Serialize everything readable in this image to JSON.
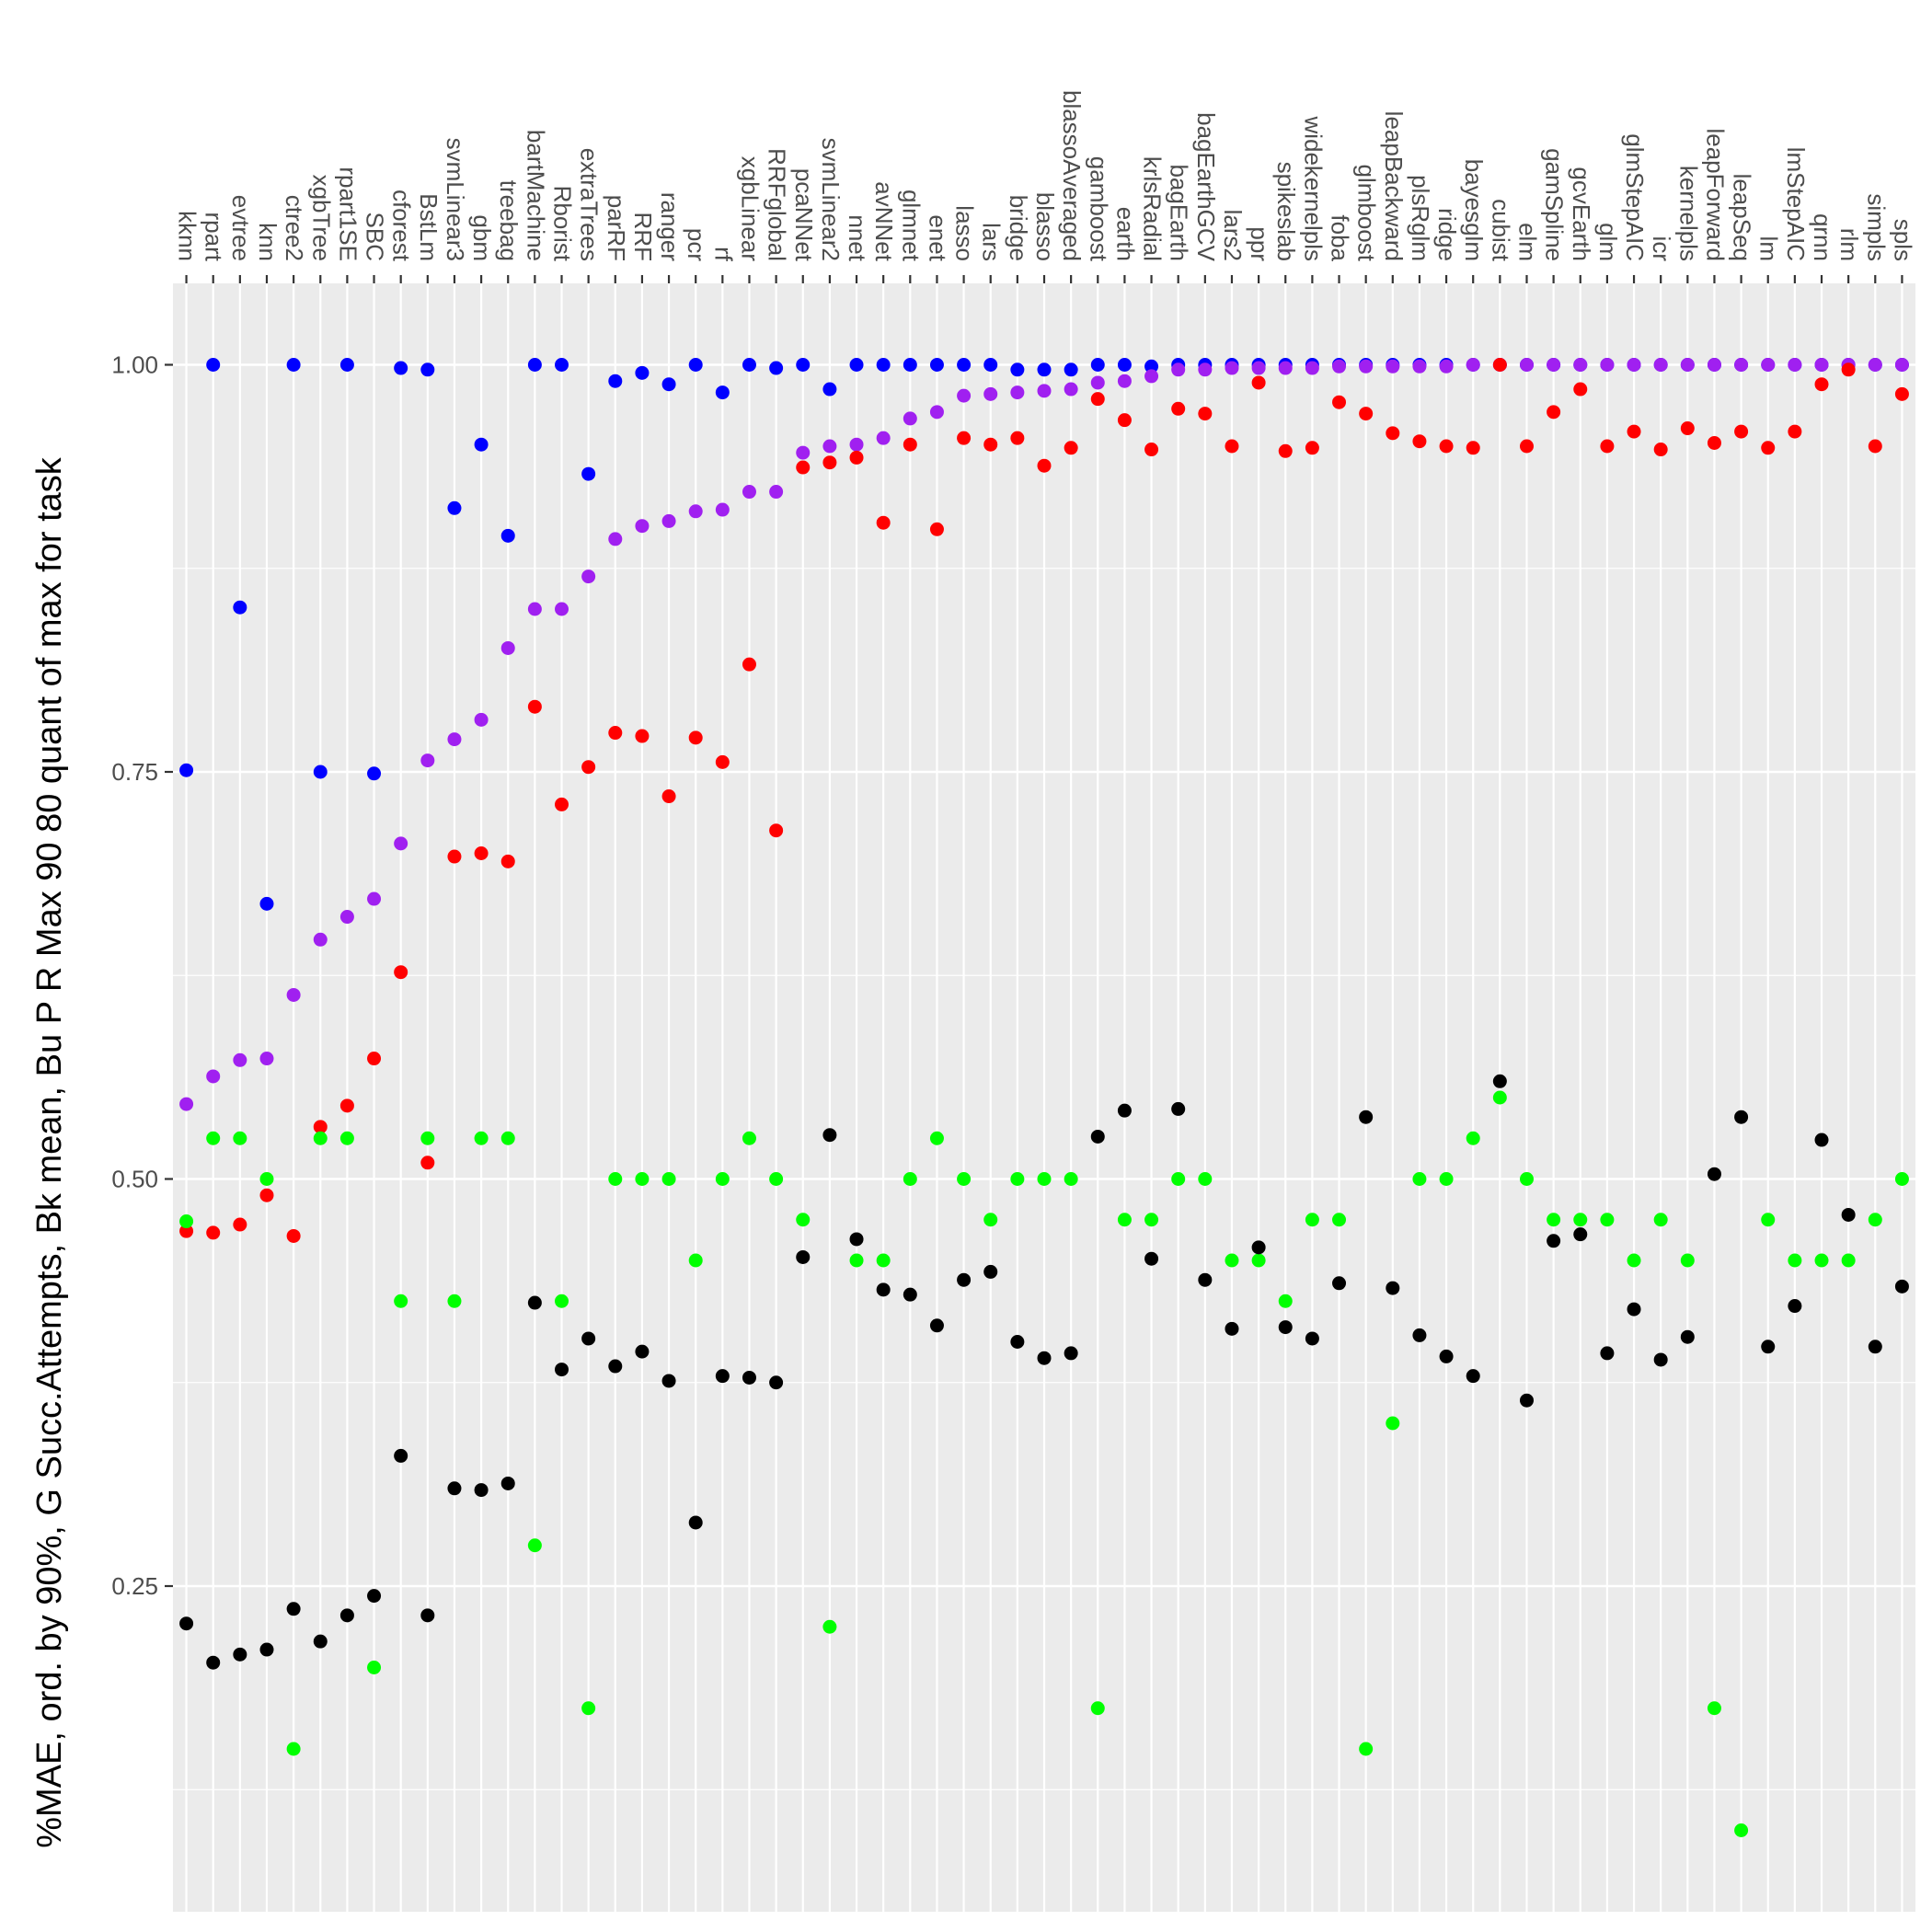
{
  "chart_data": {
    "type": "scatter",
    "ylabel": "%MAE, ord. by 90%, G Succ.Attempts, Bk mean, Bu P R Max 90 80 quant of max for task",
    "ylim": [
      0.05,
      1.05
    ],
    "yticks": [
      0.25,
      0.5,
      0.75,
      1.0
    ],
    "ytick_labels": [
      "0.25",
      "0.50",
      "0.75",
      "1.00"
    ],
    "x_axis_position": "top",
    "grid": true,
    "categories": [
      "kknn",
      "rpart",
      "evtree",
      "knn",
      "ctree2",
      "xgbTree",
      "rpart1SE",
      "SBC",
      "cforest",
      "BstLm",
      "svmLinear3",
      "gbm",
      "treebag",
      "bartMachine",
      "Rborist",
      "extraTrees",
      "parRF",
      "RRF",
      "ranger",
      "pcr",
      "rf",
      "xgbLinear",
      "RRFglobal",
      "pcaNNet",
      "svmLinear2",
      "nnet",
      "avNNet",
      "glmnet",
      "enet",
      "lasso",
      "lars",
      "bridge",
      "blasso",
      "blassoAveraged",
      "gamboost",
      "earth",
      "krlsRadial",
      "bagEarth",
      "bagEarthGCV",
      "lars2",
      "ppr",
      "spikeslab",
      "widekernelpls",
      "foba",
      "glmboost",
      "leapBackward",
      "plsRglm",
      "ridge",
      "bayesglm",
      "cubist",
      "elm",
      "gamSpline",
      "gcvEarth",
      "glm",
      "glmStepAIC",
      "icr",
      "kernelpls",
      "leapForward",
      "leapSeq",
      "lm",
      "lmStepAIC",
      "qrnn",
      "rlm",
      "simpls",
      "spls"
    ],
    "series": [
      {
        "color": "#0000ff",
        "values": [
          0.751,
          1.0,
          0.851,
          0.669,
          1.0,
          0.75,
          1.0,
          0.749,
          0.998,
          0.997,
          0.912,
          0.951,
          0.895,
          1.0,
          1.0,
          0.933,
          0.99,
          0.995,
          0.988,
          1.0,
          0.983,
          1.0,
          0.998,
          1.0,
          0.985,
          1.0,
          1.0,
          1.0,
          1.0,
          1.0,
          1.0,
          0.997,
          0.997,
          0.997,
          1.0,
          1.0,
          0.999,
          1.0,
          1.0,
          1.0,
          1.0,
          1.0,
          1.0,
          1.0,
          1.0,
          1.0,
          1.0,
          1.0,
          1.0,
          1.0,
          1.0,
          1.0,
          1.0,
          1.0,
          1.0,
          1.0,
          1.0,
          1.0,
          1.0,
          1.0,
          1.0,
          1.0,
          1.0,
          1.0,
          1.0
        ]
      },
      {
        "color": "#a020f0",
        "values": [
          0.546,
          0.563,
          0.573,
          0.574,
          0.613,
          0.647,
          0.661,
          0.672,
          0.706,
          0.757,
          0.77,
          0.782,
          0.826,
          0.85,
          0.85,
          0.87,
          0.893,
          0.901,
          0.904,
          0.91,
          0.911,
          0.922,
          0.922,
          0.946,
          0.95,
          0.951,
          0.955,
          0.967,
          0.971,
          0.981,
          0.982,
          0.983,
          0.984,
          0.985,
          0.989,
          0.99,
          0.993,
          0.997,
          0.997,
          0.998,
          0.998,
          0.998,
          0.998,
          0.999,
          0.999,
          0.999,
          0.999,
          0.999,
          1.0,
          1.0,
          1.0,
          1.0,
          1.0,
          1.0,
          1.0,
          1.0,
          1.0,
          1.0,
          1.0,
          1.0,
          1.0,
          1.0,
          1.0,
          1.0,
          1.0
        ]
      },
      {
        "color": "#ff0000",
        "values": [
          0.468,
          0.467,
          0.472,
          0.49,
          0.465,
          0.532,
          0.545,
          0.574,
          0.627,
          0.51,
          0.698,
          0.7,
          0.695,
          0.79,
          0.73,
          0.753,
          0.774,
          0.772,
          0.735,
          0.771,
          0.756,
          0.816,
          0.714,
          0.937,
          0.94,
          0.943,
          0.903,
          0.951,
          0.899,
          0.955,
          0.951,
          0.955,
          0.938,
          0.949,
          0.979,
          0.966,
          0.948,
          0.973,
          0.97,
          0.95,
          0.989,
          0.947,
          0.949,
          0.977,
          0.97,
          0.958,
          0.953,
          0.95,
          0.949,
          1.0,
          0.95,
          0.971,
          0.985,
          0.95,
          0.959,
          0.948,
          0.961,
          0.952,
          0.959,
          0.949,
          0.959,
          0.988,
          0.997,
          0.95,
          0.982
        ]
      },
      {
        "color": "#00ff00",
        "values": [
          0.474,
          0.525,
          0.525,
          0.5,
          0.15,
          0.525,
          0.525,
          0.2,
          0.425,
          0.525,
          0.425,
          0.525,
          0.525,
          0.275,
          0.425,
          0.175,
          0.5,
          0.5,
          0.5,
          0.45,
          0.5,
          0.525,
          0.5,
          0.475,
          0.225,
          0.45,
          0.45,
          0.5,
          0.525,
          0.5,
          0.475,
          0.5,
          0.5,
          0.5,
          0.175,
          0.475,
          0.475,
          0.5,
          0.5,
          0.45,
          0.45,
          0.425,
          0.475,
          0.475,
          0.15,
          0.35,
          0.5,
          0.5,
          0.525,
          0.55,
          0.5,
          0.475,
          0.475,
          0.475,
          0.45,
          0.475,
          0.45,
          0.175,
          0.1,
          0.475,
          0.45,
          0.45,
          0.45,
          0.475,
          0.5
        ]
      },
      {
        "color": "#000000",
        "values": [
          0.227,
          0.203,
          0.208,
          0.211,
          0.236,
          0.216,
          0.232,
          0.244,
          0.33,
          0.232,
          0.31,
          0.309,
          0.313,
          0.424,
          0.383,
          0.402,
          0.385,
          0.394,
          0.376,
          0.289,
          0.379,
          0.378,
          0.375,
          0.452,
          0.527,
          0.463,
          0.432,
          0.429,
          0.41,
          0.438,
          0.443,
          0.4,
          0.39,
          0.393,
          0.526,
          0.542,
          0.451,
          0.543,
          0.438,
          0.408,
          0.458,
          0.409,
          0.402,
          0.436,
          0.538,
          0.433,
          0.404,
          0.391,
          0.379,
          0.56,
          0.364,
          0.462,
          0.466,
          0.393,
          0.42,
          0.389,
          0.403,
          0.503,
          0.538,
          0.397,
          0.422,
          0.524,
          0.478,
          0.397,
          0.434
        ]
      }
    ]
  }
}
